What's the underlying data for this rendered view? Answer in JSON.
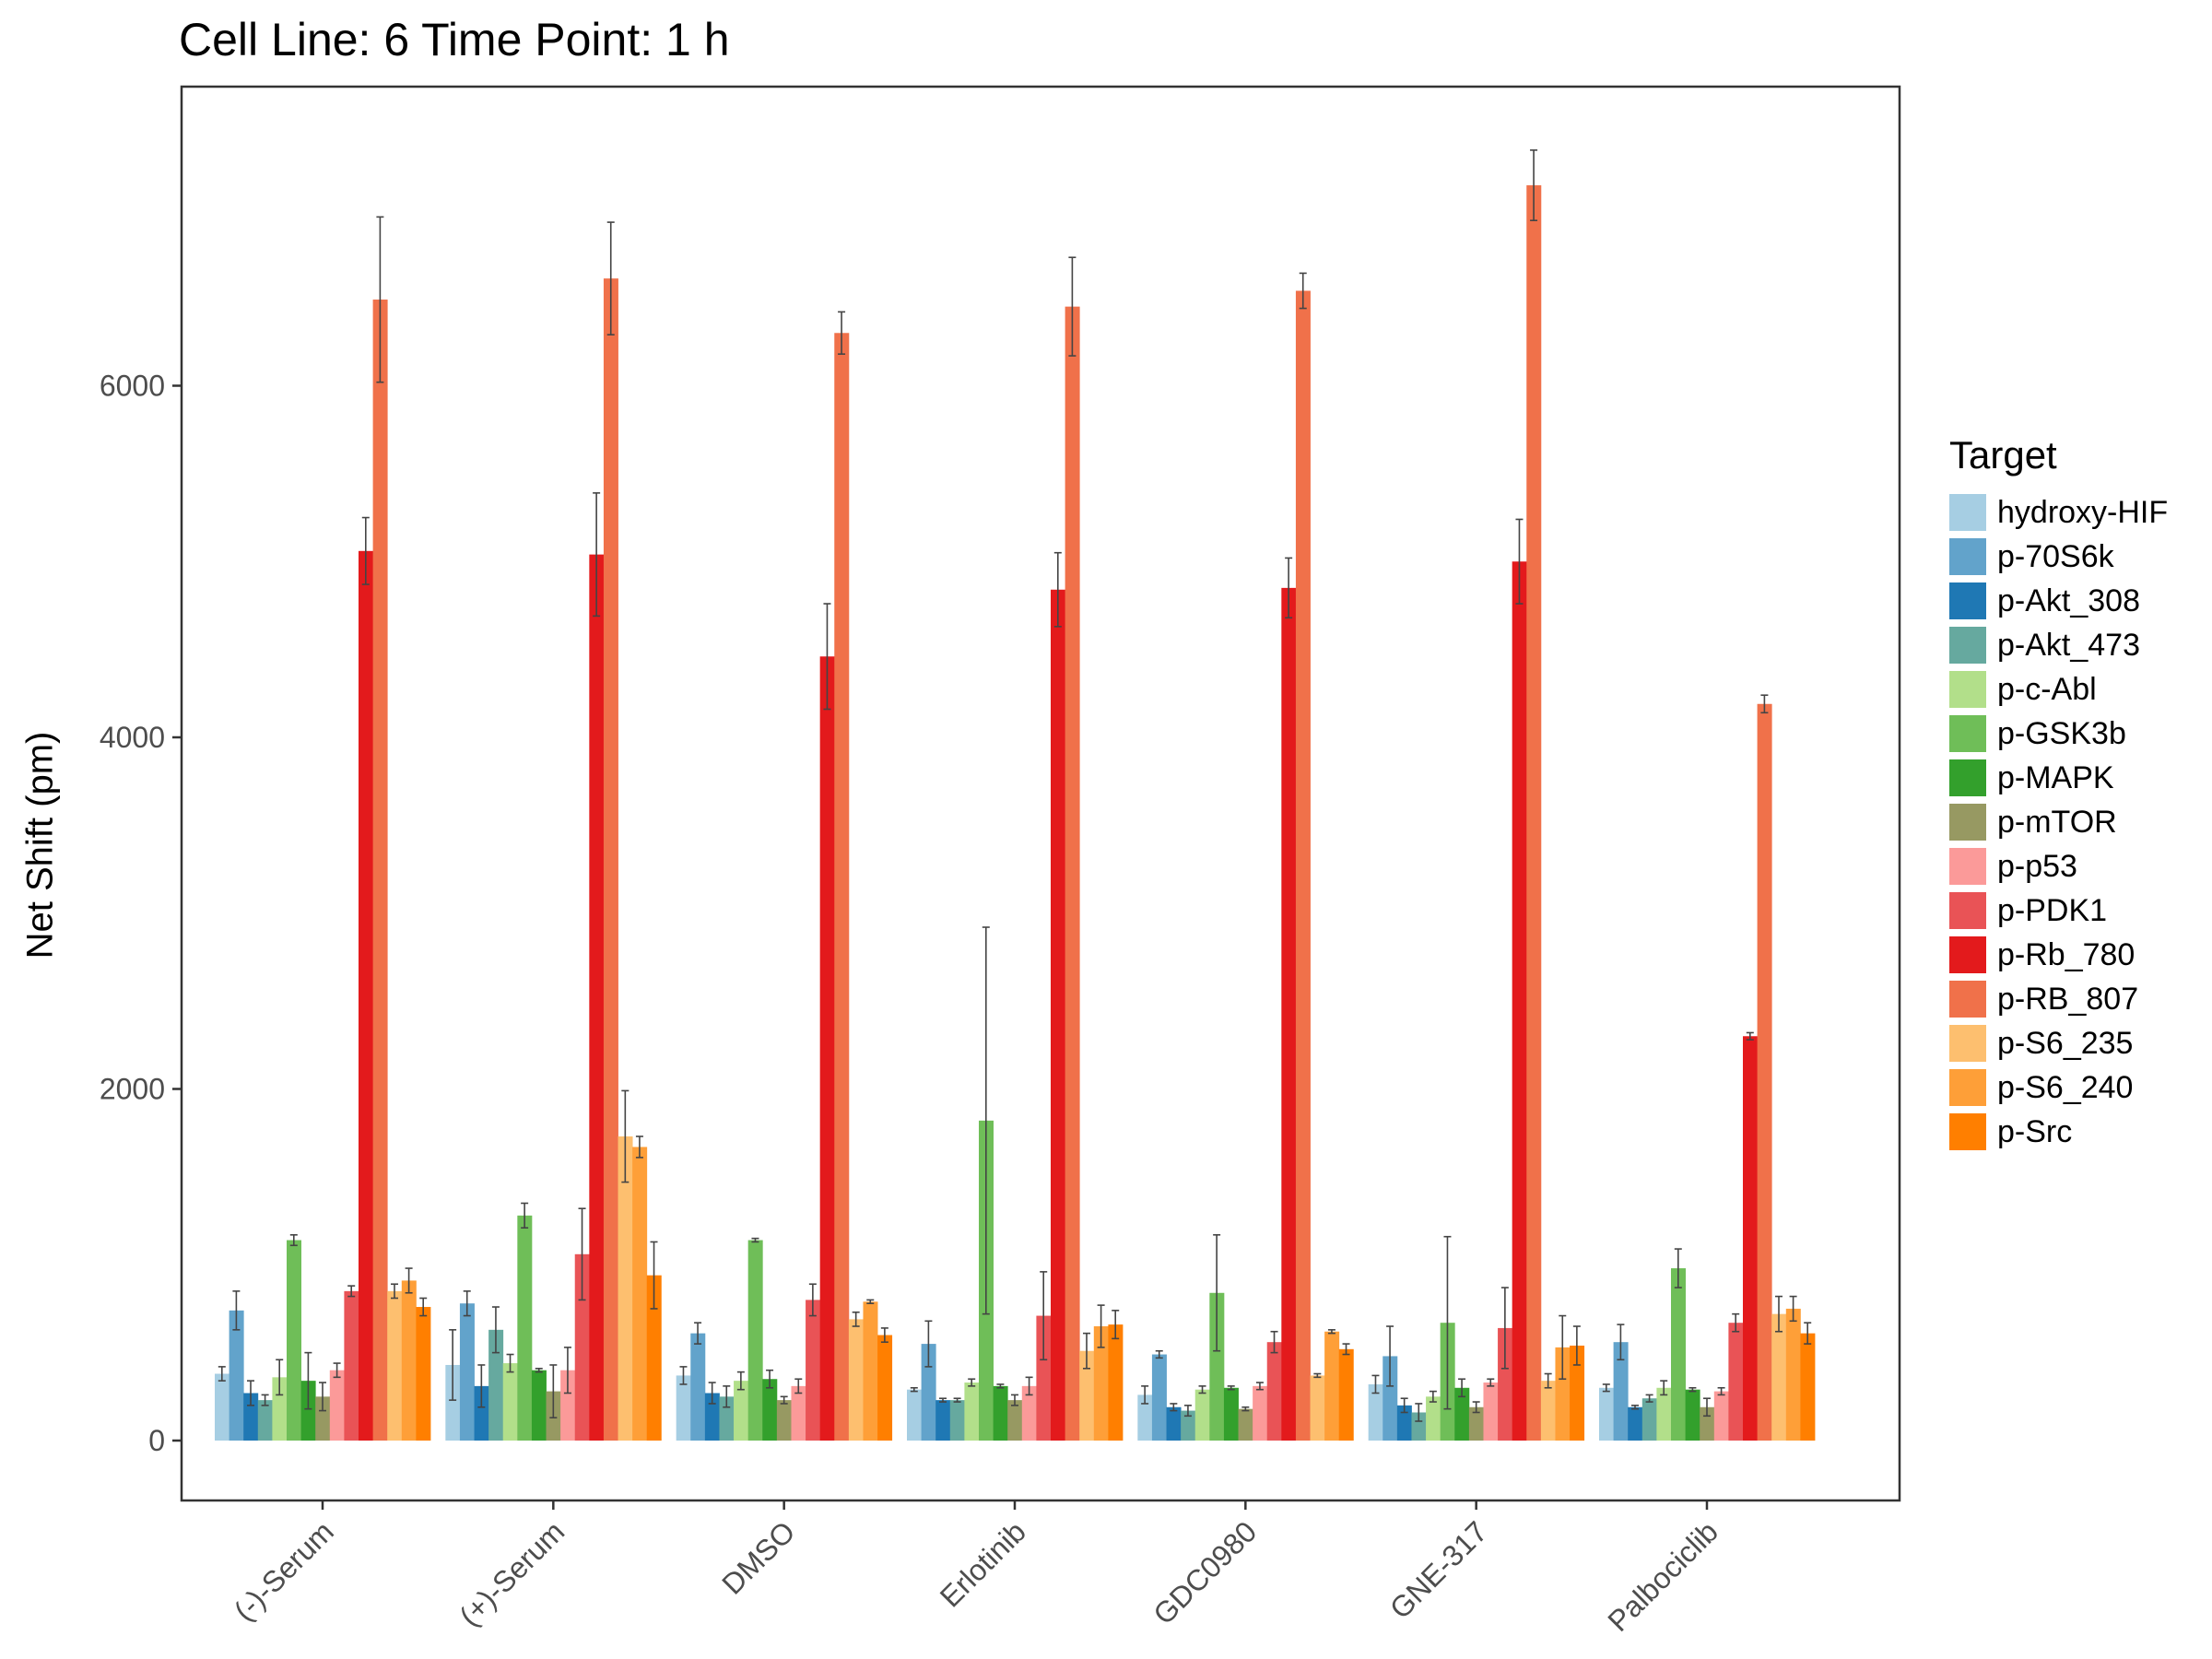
{
  "chart_data": {
    "type": "bar",
    "title": "Cell Line: 6 Time Point: 1 h",
    "xlabel": "",
    "ylabel": "Net Shift (pm)",
    "ylim": [
      -350,
      7700
    ],
    "yticks": [
      0,
      2000,
      4000,
      6000
    ],
    "grid": false,
    "legend_position": "right",
    "legend_title": "Target",
    "categories": [
      "(-)-Serum",
      "(+)-Serum",
      "DMSO",
      "Erlotinib",
      "GDC0980",
      "GNE-317",
      "Palbociclib"
    ],
    "series": [
      {
        "name": "hydroxy-HIF",
        "color": "#a6cee3",
        "values": [
          380,
          430,
          370,
          290,
          260,
          320,
          300
        ],
        "errors": [
          40,
          200,
          50,
          10,
          50,
          50,
          20
        ]
      },
      {
        "name": "p-70S6k",
        "color": "#62a3cb",
        "values": [
          740,
          780,
          610,
          550,
          490,
          480,
          560
        ],
        "errors": [
          110,
          70,
          60,
          130,
          20,
          170,
          100
        ]
      },
      {
        "name": "p-Akt_308",
        "color": "#1f78b4",
        "values": [
          270,
          310,
          270,
          230,
          190,
          200,
          190
        ],
        "errors": [
          70,
          120,
          60,
          10,
          20,
          40,
          10
        ]
      },
      {
        "name": "p-Akt_473",
        "color": "#66a99f",
        "values": [
          230,
          630,
          250,
          230,
          170,
          160,
          240
        ],
        "errors": [
          30,
          130,
          60,
          10,
          30,
          50,
          20
        ]
      },
      {
        "name": "p-c-Abl",
        "color": "#b2df8a",
        "values": [
          360,
          440,
          340,
          330,
          290,
          250,
          300
        ],
        "errors": [
          100,
          50,
          50,
          20,
          20,
          30,
          40
        ]
      },
      {
        "name": "p-GSK3b",
        "color": "#6fbe58",
        "values": [
          1140,
          1280,
          1140,
          1820,
          840,
          670,
          980
        ],
        "errors": [
          30,
          70,
          10,
          1100,
          330,
          490,
          110
        ]
      },
      {
        "name": "p-MAPK",
        "color": "#33a02c",
        "values": [
          340,
          400,
          350,
          310,
          300,
          300,
          290
        ],
        "errors": [
          160,
          10,
          50,
          10,
          10,
          50,
          10
        ]
      },
      {
        "name": "p-mTOR",
        "color": "#979962",
        "values": [
          250,
          280,
          230,
          230,
          180,
          190,
          190
        ],
        "errors": [
          80,
          150,
          20,
          30,
          10,
          30,
          50
        ]
      },
      {
        "name": "p-p53",
        "color": "#fb9a99",
        "values": [
          400,
          400,
          310,
          310,
          310,
          330,
          280
        ],
        "errors": [
          40,
          130,
          40,
          50,
          20,
          20,
          20
        ]
      },
      {
        "name": "p-PDK1",
        "color": "#e95356",
        "values": [
          850,
          1060,
          800,
          710,
          560,
          640,
          670
        ],
        "errors": [
          30,
          260,
          90,
          250,
          60,
          230,
          50
        ]
      },
      {
        "name": "p-Rb_780",
        "color": "#e31a1c",
        "values": [
          5060,
          5040,
          4460,
          4840,
          4850,
          5000,
          2300
        ],
        "errors": [
          190,
          350,
          300,
          210,
          170,
          240,
          20
        ]
      },
      {
        "name": "p-RB_807",
        "color": "#f0714a",
        "values": [
          6490,
          6610,
          6300,
          6450,
          6540,
          7140,
          4190
        ],
        "errors": [
          470,
          320,
          120,
          280,
          100,
          200,
          50
        ]
      },
      {
        "name": "p-S6_235",
        "color": "#fdbf6f",
        "values": [
          850,
          1730,
          690,
          510,
          370,
          340,
          720
        ],
        "errors": [
          40,
          260,
          40,
          100,
          10,
          40,
          100
        ]
      },
      {
        "name": "p-S6_240",
        "color": "#fe9f38",
        "values": [
          910,
          1670,
          790,
          650,
          620,
          530,
          750
        ],
        "errors": [
          70,
          60,
          10,
          120,
          10,
          180,
          70
        ]
      },
      {
        "name": "p-Src",
        "color": "#ff7f00",
        "values": [
          760,
          940,
          600,
          660,
          520,
          540,
          610
        ],
        "errors": [
          50,
          190,
          40,
          80,
          30,
          110,
          60
        ]
      }
    ]
  }
}
